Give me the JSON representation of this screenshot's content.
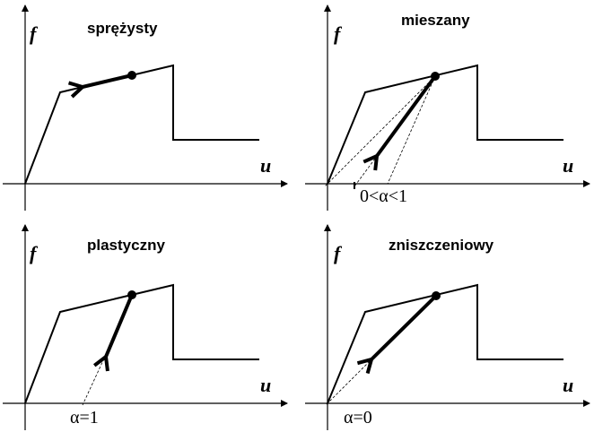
{
  "panels": [
    {
      "title": "sprężysty",
      "y_label": "f",
      "x_label": "u",
      "alpha_label": ""
    },
    {
      "title": "mieszany",
      "y_label": "f",
      "x_label": "u",
      "alpha_label": "0<α<1"
    },
    {
      "title": "plastyczny",
      "y_label": "f",
      "x_label": "u",
      "alpha_label": "α=1"
    },
    {
      "title": "zniszczeniowy",
      "y_label": "f",
      "x_label": "u",
      "alpha_label": "α=0"
    }
  ]
}
